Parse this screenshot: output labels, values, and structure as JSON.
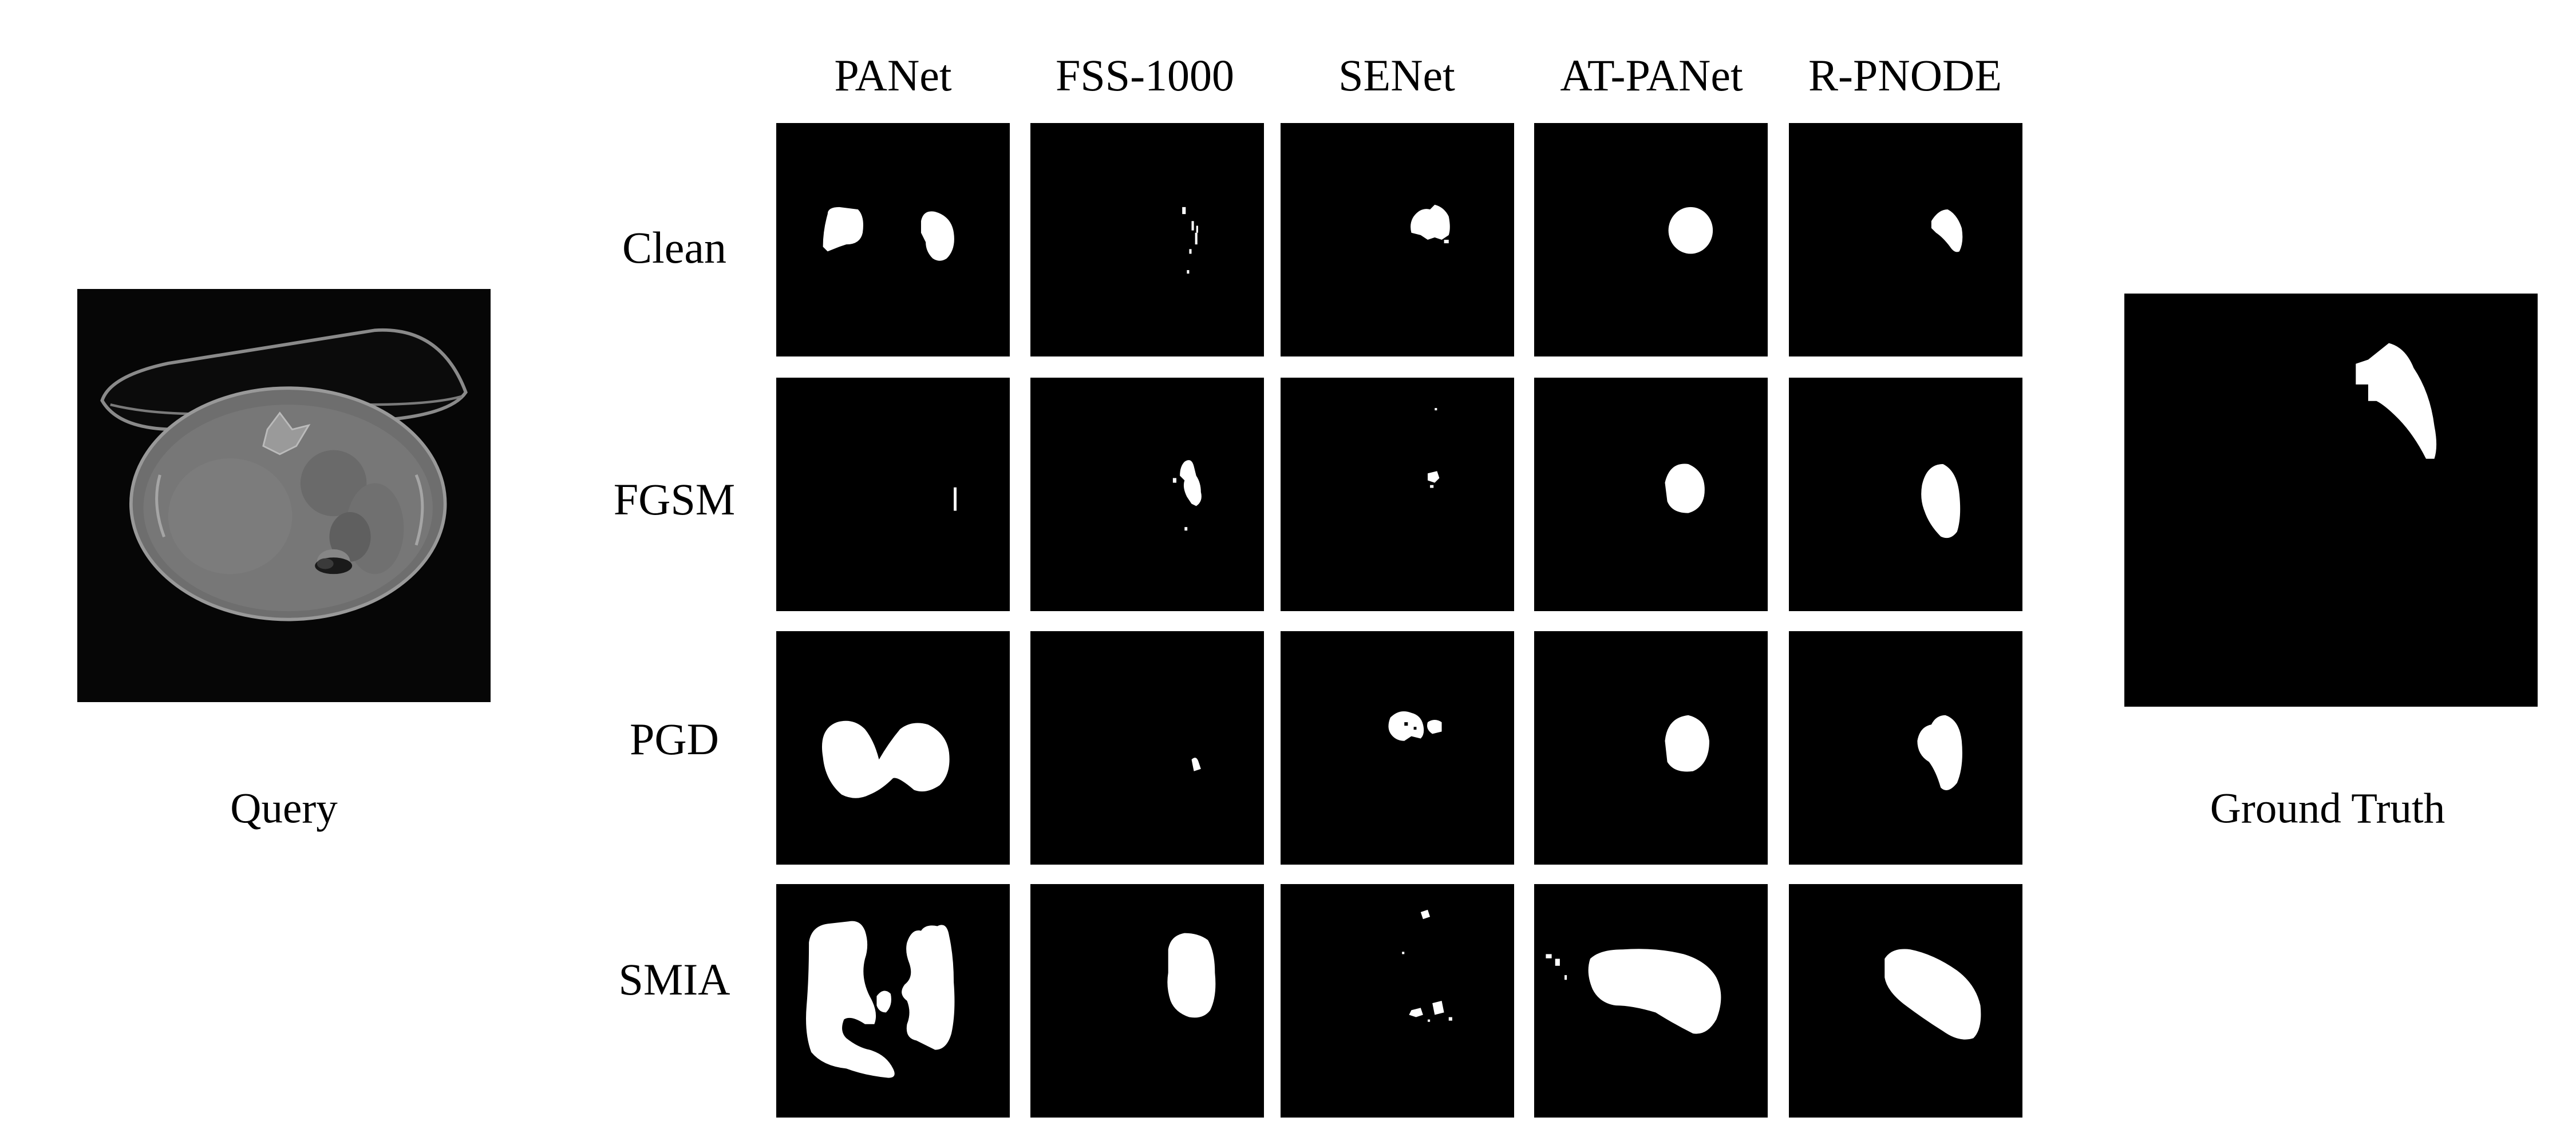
{
  "query_label": "Query",
  "ground_truth_label": "Ground Truth",
  "columns": [
    "PANet",
    "FSS-1000",
    "SENet",
    "AT-PANet",
    "R-PNODE"
  ],
  "rows": [
    "Clean",
    "FGSM",
    "PGD",
    "SMIA"
  ]
}
